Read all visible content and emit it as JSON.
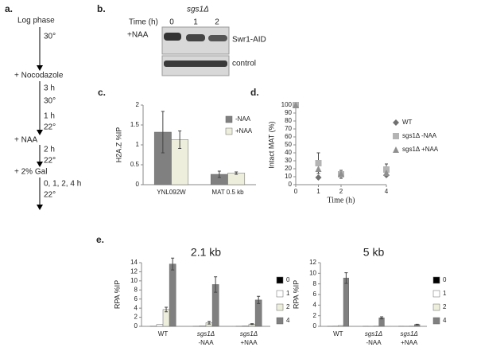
{
  "panel_a": {
    "label": "a.",
    "steps": [
      "Log phase",
      "30°",
      "+ Nocodazole",
      "3 h",
      "30°",
      "1 h",
      "22°",
      "+ NAA",
      "2 h",
      "22°",
      "+ 2% Gal",
      "0, 1, 2, 4 h",
      "22°"
    ]
  },
  "panel_b": {
    "label": "b.",
    "strain": "sgs1Δ",
    "time_label": "Time (h)",
    "times": [
      "0",
      "1",
      "2"
    ],
    "treatment": "+NAA",
    "blots": [
      "Swr1-AID",
      "control"
    ]
  },
  "chart_data": [
    {
      "type": "bar",
      "panel_label": "c.",
      "ylabel": "H2A.Z %IP",
      "categories": [
        "YNL092W",
        "MAT 0.5 kb"
      ],
      "ylim": [
        0,
        2
      ],
      "yticks": [
        0,
        0.5,
        1,
        1.5,
        2
      ],
      "legend": "upper right",
      "series": [
        {
          "name": "-NAA",
          "color": "#808080",
          "values": [
            1.32,
            0.26
          ],
          "errors": [
            0.52,
            0.08
          ]
        },
        {
          "name": "+NAA",
          "color": "#eeeedc",
          "values": [
            1.13,
            0.29
          ],
          "errors": [
            0.22,
            0.03
          ]
        }
      ]
    },
    {
      "type": "scatter",
      "panel_label": "d.",
      "ylabel": "Intact MAT (%)",
      "xlabel": "Time (h)",
      "x": [
        0,
        1,
        2,
        4
      ],
      "xlim": [
        0,
        4
      ],
      "xticks": [
        0,
        1,
        2,
        4
      ],
      "ylim": [
        0,
        100
      ],
      "yticks": [
        0,
        10,
        20,
        30,
        40,
        50,
        60,
        70,
        80,
        90,
        100
      ],
      "legend": "right",
      "series": [
        {
          "name": "WT",
          "color": "#707070",
          "marker": "diamond",
          "values": [
            100,
            9,
            12,
            12
          ]
        },
        {
          "name": "sgs1Δ -NAA",
          "color": "#b4b4b4",
          "marker": "square",
          "values": [
            100,
            27,
            13,
            19
          ],
          "errors": [
            0,
            13,
            5,
            7
          ]
        },
        {
          "name": "sgs1Δ +NAA",
          "color": "#909090",
          "marker": "triangle",
          "values": [
            100,
            20,
            14,
            15
          ]
        }
      ]
    },
    {
      "type": "bar",
      "panel_label": "e.",
      "title": "2.1 kb",
      "ylabel": "RPA %IP",
      "categories": [
        "WT",
        "sgs1Δ",
        "sgs1Δ"
      ],
      "category_sublabels": [
        null,
        "-NAA",
        "+NAA"
      ],
      "ylim": [
        0,
        14
      ],
      "yticks": [
        0,
        2,
        4,
        6,
        8,
        10,
        12,
        14
      ],
      "legend": "right",
      "series": [
        {
          "name": "0",
          "color": "#000000",
          "values": [
            0.05,
            0.02,
            0.02
          ]
        },
        {
          "name": "1",
          "color": "#ffffff",
          "values": [
            0.4,
            0.1,
            0.1
          ]
        },
        {
          "name": "2",
          "color": "#eeeedc",
          "values": [
            3.7,
            0.8,
            0.5
          ],
          "errors": [
            0.5,
            0.3,
            0.1
          ]
        },
        {
          "name": "4",
          "color": "#808080",
          "values": [
            13.7,
            9.2,
            5.8
          ],
          "errors": [
            1.3,
            1.7,
            0.8
          ]
        }
      ]
    },
    {
      "type": "bar",
      "title": "5 kb",
      "ylabel": "RPA %IP",
      "categories": [
        "WT",
        "sgs1Δ",
        "sgs1Δ"
      ],
      "category_sublabels": [
        null,
        "-NAA",
        "+NAA"
      ],
      "ylim": [
        0,
        12
      ],
      "yticks": [
        0,
        2,
        4,
        6,
        8,
        10,
        12
      ],
      "legend": "right",
      "series": [
        {
          "name": "0",
          "color": "#000000",
          "values": [
            0.02,
            0.02,
            0.02
          ]
        },
        {
          "name": "1",
          "color": "#ffffff",
          "values": [
            0.05,
            0.02,
            0.02
          ]
        },
        {
          "name": "2",
          "color": "#eeeedc",
          "values": [
            0.15,
            0.05,
            0.05
          ]
        },
        {
          "name": "4",
          "color": "#808080",
          "values": [
            9.1,
            1.6,
            0.35
          ],
          "errors": [
            1.0,
            0.2,
            0.05
          ]
        }
      ]
    }
  ]
}
